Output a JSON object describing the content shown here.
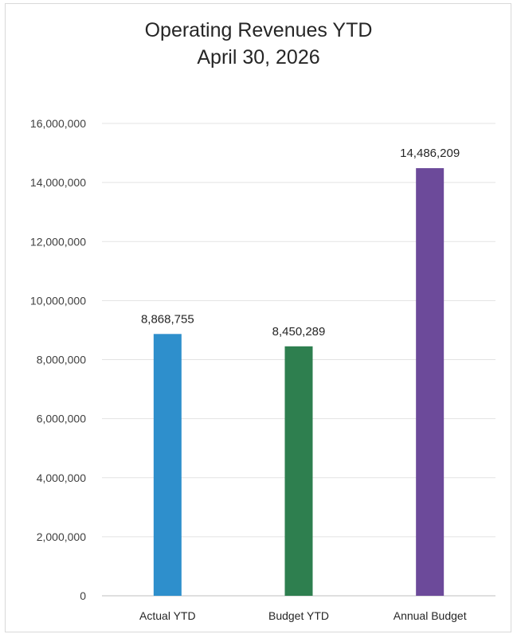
{
  "chart_data": {
    "type": "bar",
    "title": "Operating Revenues YTD",
    "subtitle": "April 30, 2026",
    "xlabel": "",
    "ylabel": "",
    "ylim": [
      0,
      16000000
    ],
    "yticks": [
      0,
      2000000,
      4000000,
      6000000,
      8000000,
      10000000,
      12000000,
      14000000,
      16000000
    ],
    "ytick_labels": [
      "0",
      "2,000,000",
      "4,000,000",
      "6,000,000",
      "8,000,000",
      "10,000,000",
      "12,000,000",
      "14,000,000",
      "16,000,000"
    ],
    "categories": [
      "Actual YTD",
      "Budget YTD",
      "Annual Budget"
    ],
    "values": [
      8868755,
      8450289,
      14486209
    ],
    "value_labels": [
      "8,868,755",
      "8,450,289",
      "14,486,209"
    ],
    "colors": [
      "#2e8fcc",
      "#2e7f4f",
      "#6c4a9a"
    ],
    "grid": true,
    "legend": "none"
  }
}
